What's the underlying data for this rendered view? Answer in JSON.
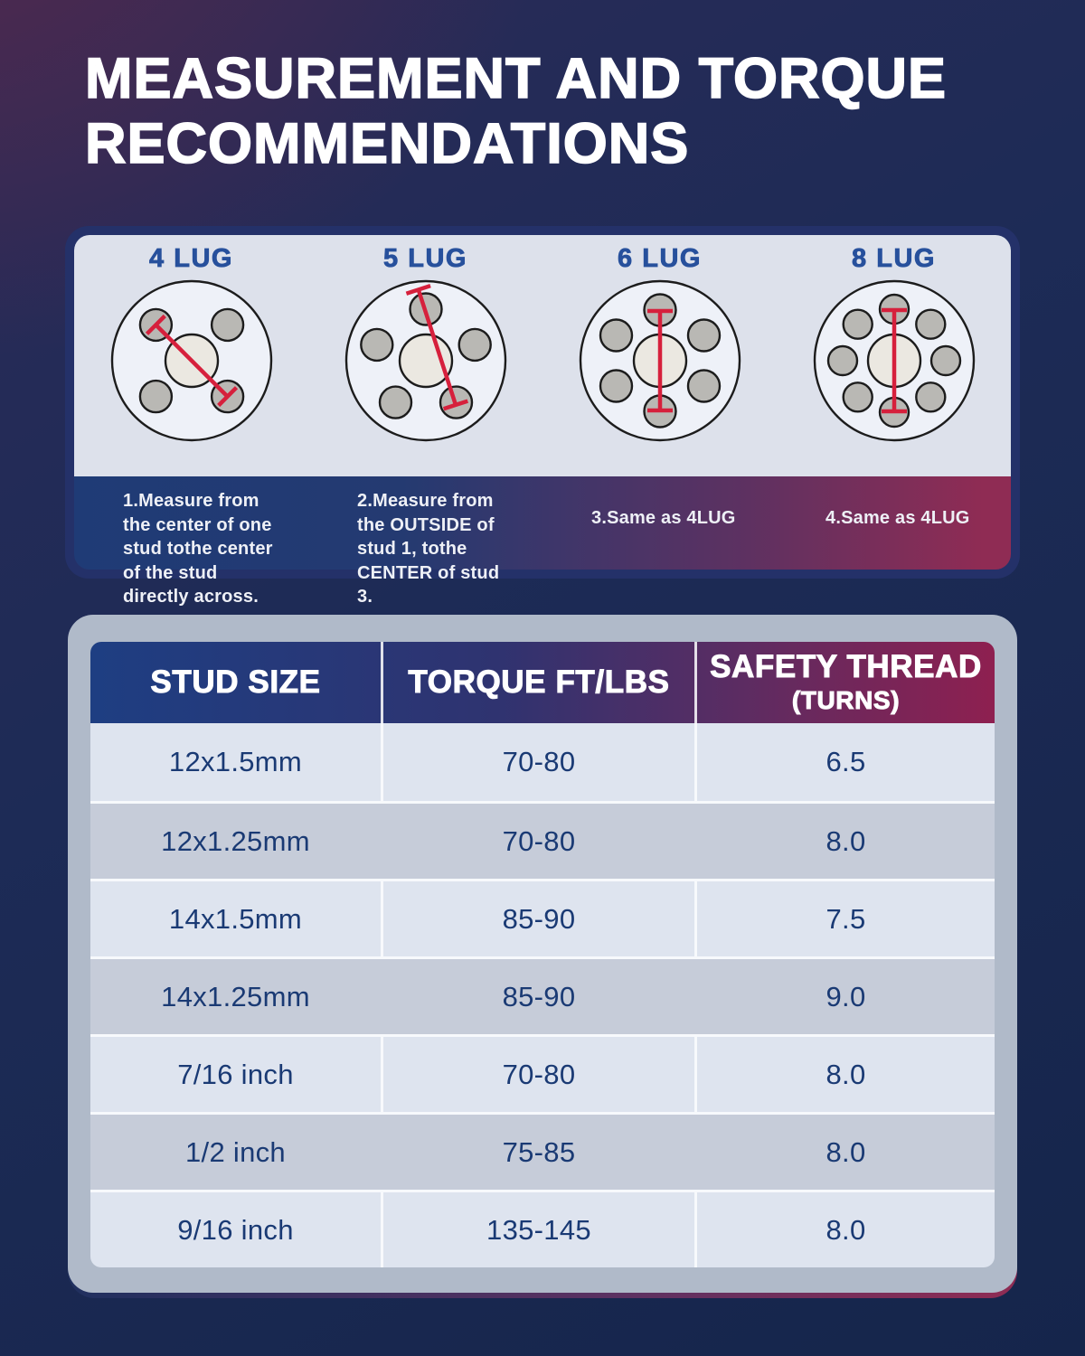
{
  "title": {
    "line1": "MEASUREMENT AND TORQUE",
    "line2": "RECOMMENDATIONS"
  },
  "lug_diagrams": [
    {
      "label": "4 LUG",
      "lug_count": 4,
      "note": "1.Measure from the center of one stud tothe center of the stud directly across."
    },
    {
      "label": "5 LUG",
      "lug_count": 5,
      "note": "2.Measure from the OUTSIDE of stud 1, tothe CENTER of stud 3."
    },
    {
      "label": "6 LUG",
      "lug_count": 6,
      "note": "3.Same as 4LUG"
    },
    {
      "label": "8 LUG",
      "lug_count": 8,
      "note": "4.Same as 4LUG"
    }
  ],
  "table": {
    "headers": {
      "col1": "STUD SIZE",
      "col2": "TORQUE FT/LBS",
      "col3": "SAFETY THREAD",
      "col3_sub": "(TURNS)"
    },
    "rows": [
      [
        "12x1.5mm",
        "70-80",
        "6.5"
      ],
      [
        "12x1.25mm",
        "70-80",
        "8.0"
      ],
      [
        "14x1.5mm",
        "85-90",
        "7.5"
      ],
      [
        "14x1.25mm",
        "85-90",
        "9.0"
      ],
      [
        "7/16 inch",
        "70-80",
        "8.0"
      ],
      [
        "1/2 inch",
        "75-85",
        "8.0"
      ],
      [
        "9/16 inch",
        "135-145",
        "8.0"
      ]
    ]
  },
  "chart_data": {
    "type": "table",
    "title": "MEASUREMENT AND TORQUE RECOMMENDATIONS",
    "columns": [
      "STUD SIZE",
      "TORQUE FT/LBS",
      "SAFETY THREAD (TURNS)"
    ],
    "rows": [
      [
        "12x1.5mm",
        "70-80",
        6.5
      ],
      [
        "12x1.25mm",
        "70-80",
        8.0
      ],
      [
        "14x1.5mm",
        "85-90",
        7.5
      ],
      [
        "14x1.25mm",
        "85-90",
        9.0
      ],
      [
        "7/16 inch",
        "70-80",
        8.0
      ],
      [
        "1/2 inch",
        "75-85",
        8.0
      ],
      [
        "9/16 inch",
        "135-145",
        8.0
      ]
    ]
  },
  "colors": {
    "measure_line_red": "#d6203c",
    "lug_label_blue": "#27509c",
    "header_gradient_left": "#1e3e82",
    "header_gradient_right": "#8e2050",
    "strip_gradient_left": "#1f3b76",
    "strip_gradient_right": "#8f2c54",
    "row_light": "#dee4ef",
    "row_dark": "#c6ccd9",
    "cell_text": "#1a3a74",
    "panel_border_navy": "#243169"
  }
}
